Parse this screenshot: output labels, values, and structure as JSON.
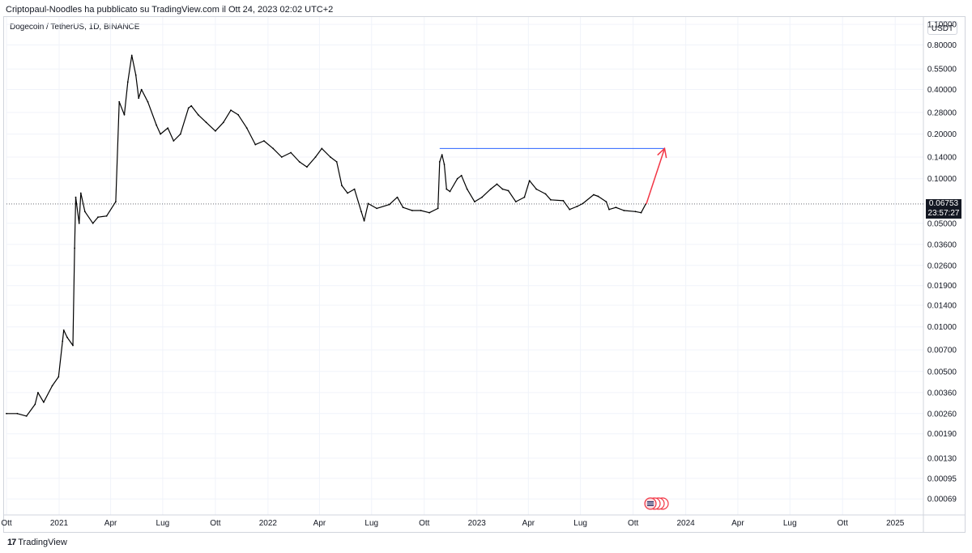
{
  "header": {
    "attribution": "Criptopaul-Noodles ha pubblicato su TradingView.com il Ott 24, 2023 02:02 UTC+2"
  },
  "legend": {
    "symbol": "Dogecoin / TetherUS, 1D, BINANCE"
  },
  "axis": {
    "currency": "USDT"
  },
  "last_price": {
    "value": "0.06753",
    "countdown": "23:57:27"
  },
  "footer": {
    "logo": "17",
    "brand": "TradingView"
  },
  "colors": {
    "price_line": "#000000",
    "resistance_line": "#2962ff",
    "arrow": "#f23645",
    "grid": "#f0f3fa"
  },
  "chart_data": {
    "type": "line",
    "y_scale": "log",
    "ylim": [
      0.00058,
      1.25
    ],
    "xlim": [
      "2020-10-01",
      "2025-02-15"
    ],
    "y_ticks": [
      "1.10000",
      "0.80000",
      "0.55000",
      "0.40000",
      "0.28000",
      "0.20000",
      "0.14000",
      "0.10000",
      "0.05000",
      "0.03600",
      "0.02600",
      "0.01900",
      "0.01400",
      "0.01000",
      "0.00700",
      "0.00500",
      "0.00360",
      "0.00260",
      "0.00190",
      "0.00130",
      "0.00095",
      "0.00069"
    ],
    "x_ticks": [
      {
        "date": "2020-10-01",
        "label": "Ott"
      },
      {
        "date": "2021-01-01",
        "label": "2021"
      },
      {
        "date": "2021-04-01",
        "label": "Apr"
      },
      {
        "date": "2021-07-01",
        "label": "Lug"
      },
      {
        "date": "2021-10-01",
        "label": "Ott"
      },
      {
        "date": "2022-01-01",
        "label": "2022"
      },
      {
        "date": "2022-04-01",
        "label": "Apr"
      },
      {
        "date": "2022-07-01",
        "label": "Lug"
      },
      {
        "date": "2022-10-01",
        "label": "Ott"
      },
      {
        "date": "2023-01-01",
        "label": "2023"
      },
      {
        "date": "2023-04-01",
        "label": "Apr"
      },
      {
        "date": "2023-07-01",
        "label": "Lug"
      },
      {
        "date": "2023-10-01",
        "label": "Ott"
      },
      {
        "date": "2024-01-01",
        "label": "2024"
      },
      {
        "date": "2024-04-01",
        "label": "Apr"
      },
      {
        "date": "2024-07-01",
        "label": "Lug"
      },
      {
        "date": "2024-10-01",
        "label": "Ott"
      },
      {
        "date": "2025-01-01",
        "label": "2025"
      }
    ],
    "series": [
      {
        "points": [
          [
            "2020-10-01",
            0.0026
          ],
          [
            "2020-10-20",
            0.0026
          ],
          [
            "2020-11-05",
            0.0025
          ],
          [
            "2020-11-20",
            0.003
          ],
          [
            "2020-11-25",
            0.0036
          ],
          [
            "2020-12-05",
            0.0031
          ],
          [
            "2020-12-20",
            0.004
          ],
          [
            "2020-12-31",
            0.0046
          ],
          [
            "2021-01-07",
            0.008
          ],
          [
            "2021-01-09",
            0.0095
          ],
          [
            "2021-01-15",
            0.0085
          ],
          [
            "2021-01-25",
            0.0075
          ],
          [
            "2021-01-28",
            0.034
          ],
          [
            "2021-01-30",
            0.075
          ],
          [
            "2021-02-05",
            0.05
          ],
          [
            "2021-02-08",
            0.08
          ],
          [
            "2021-02-15",
            0.06
          ],
          [
            "2021-03-01",
            0.05
          ],
          [
            "2021-03-10",
            0.055
          ],
          [
            "2021-03-25",
            0.056
          ],
          [
            "2021-04-10",
            0.07
          ],
          [
            "2021-04-16",
            0.33
          ],
          [
            "2021-04-25",
            0.27
          ],
          [
            "2021-05-01",
            0.45
          ],
          [
            "2021-05-08",
            0.68
          ],
          [
            "2021-05-15",
            0.5
          ],
          [
            "2021-05-20",
            0.35
          ],
          [
            "2021-05-25",
            0.4
          ],
          [
            "2021-06-05",
            0.33
          ],
          [
            "2021-06-20",
            0.23
          ],
          [
            "2021-06-27",
            0.2
          ],
          [
            "2021-07-10",
            0.22
          ],
          [
            "2021-07-20",
            0.18
          ],
          [
            "2021-08-01",
            0.2
          ],
          [
            "2021-08-15",
            0.3
          ],
          [
            "2021-08-20",
            0.31
          ],
          [
            "2021-09-01",
            0.27
          ],
          [
            "2021-09-15",
            0.24
          ],
          [
            "2021-10-01",
            0.21
          ],
          [
            "2021-10-15",
            0.24
          ],
          [
            "2021-10-28",
            0.29
          ],
          [
            "2021-11-10",
            0.27
          ],
          [
            "2021-11-25",
            0.22
          ],
          [
            "2021-12-10",
            0.17
          ],
          [
            "2021-12-25",
            0.18
          ],
          [
            "2022-01-10",
            0.16
          ],
          [
            "2022-01-25",
            0.14
          ],
          [
            "2022-02-10",
            0.15
          ],
          [
            "2022-02-25",
            0.13
          ],
          [
            "2022-03-10",
            0.12
          ],
          [
            "2022-03-25",
            0.14
          ],
          [
            "2022-04-05",
            0.16
          ],
          [
            "2022-04-20",
            0.14
          ],
          [
            "2022-05-01",
            0.13
          ],
          [
            "2022-05-10",
            0.09
          ],
          [
            "2022-05-20",
            0.08
          ],
          [
            "2022-06-01",
            0.085
          ],
          [
            "2022-06-13",
            0.06
          ],
          [
            "2022-06-18",
            0.052
          ],
          [
            "2022-06-25",
            0.068
          ],
          [
            "2022-07-10",
            0.063
          ],
          [
            "2022-08-01",
            0.067
          ],
          [
            "2022-08-15",
            0.075
          ],
          [
            "2022-08-25",
            0.064
          ],
          [
            "2022-09-10",
            0.061
          ],
          [
            "2022-09-25",
            0.061
          ],
          [
            "2022-10-10",
            0.059
          ],
          [
            "2022-10-25",
            0.063
          ],
          [
            "2022-10-28",
            0.13
          ],
          [
            "2022-11-01",
            0.145
          ],
          [
            "2022-11-05",
            0.125
          ],
          [
            "2022-11-09",
            0.085
          ],
          [
            "2022-11-15",
            0.082
          ],
          [
            "2022-11-28",
            0.1
          ],
          [
            "2022-12-05",
            0.105
          ],
          [
            "2022-12-15",
            0.085
          ],
          [
            "2022-12-28",
            0.07
          ],
          [
            "2023-01-10",
            0.075
          ],
          [
            "2023-01-25",
            0.085
          ],
          [
            "2023-02-05",
            0.092
          ],
          [
            "2023-02-15",
            0.085
          ],
          [
            "2023-02-25",
            0.083
          ],
          [
            "2023-03-10",
            0.07
          ],
          [
            "2023-03-25",
            0.075
          ],
          [
            "2023-04-03",
            0.097
          ],
          [
            "2023-04-15",
            0.085
          ],
          [
            "2023-05-01",
            0.079
          ],
          [
            "2023-05-10",
            0.072
          ],
          [
            "2023-06-01",
            0.071
          ],
          [
            "2023-06-12",
            0.062
          ],
          [
            "2023-06-25",
            0.065
          ],
          [
            "2023-07-05",
            0.068
          ],
          [
            "2023-07-24",
            0.078
          ],
          [
            "2023-08-01",
            0.076
          ],
          [
            "2023-08-15",
            0.07
          ],
          [
            "2023-08-20",
            0.062
          ],
          [
            "2023-09-01",
            0.064
          ],
          [
            "2023-09-15",
            0.061
          ],
          [
            "2023-10-05",
            0.06
          ],
          [
            "2023-10-15",
            0.059
          ],
          [
            "2023-10-23",
            0.0675
          ]
        ]
      }
    ],
    "annotations": [
      {
        "type": "horizontal_segment",
        "y": 0.16,
        "from": "2022-10-28",
        "to": "2023-11-25"
      },
      {
        "type": "arrow",
        "from": [
          "2023-10-24",
          0.0675
        ],
        "to": [
          "2023-11-25",
          0.16
        ]
      }
    ]
  }
}
